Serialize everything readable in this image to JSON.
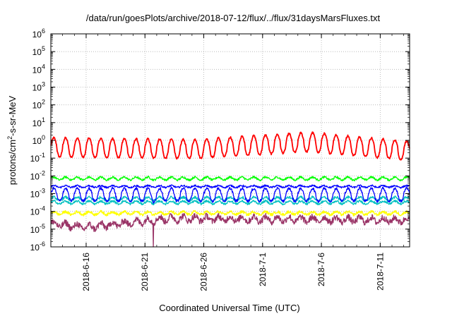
{
  "chart_data": {
    "type": "line",
    "title": "/data/run/goesPlots/archive/2018-07-12/flux/../flux/31daysMarsFluxes.txt",
    "xlabel": "Coordinated Universal Time (UTC)",
    "ylabel": {
      "prefix": "protons/cm",
      "superscript": "2",
      "suffix": "-s-sr-MeV"
    },
    "y_scale": "log",
    "ylim_exponent": [
      -6,
      6
    ],
    "y_tick_labels": [
      {
        "base": "10",
        "exp": "-6"
      },
      {
        "base": "10",
        "exp": "-5"
      },
      {
        "base": "10",
        "exp": "-4"
      },
      {
        "base": "10",
        "exp": "-3"
      },
      {
        "base": "10",
        "exp": "-2"
      },
      {
        "base": "10",
        "exp": "-1"
      },
      {
        "base": "10",
        "exp": "0"
      },
      {
        "base": "10",
        "exp": "1"
      },
      {
        "base": "10",
        "exp": "2"
      },
      {
        "base": "10",
        "exp": "3"
      },
      {
        "base": "10",
        "exp": "4"
      },
      {
        "base": "10",
        "exp": "5"
      },
      {
        "base": "10",
        "exp": "6"
      }
    ],
    "x_range_days": [
      0,
      30.5
    ],
    "x_ticks": [
      {
        "label": "2018-6-16",
        "day": 3
      },
      {
        "label": "2018-6-21",
        "day": 8
      },
      {
        "label": "2018-6-26",
        "day": 13
      },
      {
        "label": "2018-7-1",
        "day": 18
      },
      {
        "label": "2018-7-6",
        "day": 23
      },
      {
        "label": "2018-7-11",
        "day": 28
      }
    ],
    "grid": true,
    "series": [
      {
        "color": "#ff0000",
        "base_exp": -0.3,
        "trend": [
          [
            0,
            0
          ],
          [
            12,
            -0.1
          ],
          [
            22,
            0.3
          ],
          [
            30.5,
            -0.2
          ]
        ],
        "osc_amp": 0.45,
        "noise": 0.05,
        "period": 1.0,
        "dip_sharp": true
      },
      {
        "color": "#00ff00",
        "base_exp": -2.15,
        "trend": [
          [
            0,
            0
          ],
          [
            30.5,
            0
          ]
        ],
        "osc_amp": 0.08,
        "noise": 0.06,
        "period": 1.0
      },
      {
        "color": "#0000ff",
        "base_exp": -2.6,
        "trend": [
          [
            0,
            0
          ],
          [
            30.5,
            0
          ]
        ],
        "osc_amp": 0.05,
        "noise": 0.05,
        "period": 1.0
      },
      {
        "color": "#00c0c0",
        "base_exp": -3.3,
        "trend": [
          [
            0,
            0
          ],
          [
            30.5,
            0
          ]
        ],
        "osc_amp": 0.1,
        "noise": 0.07,
        "period": 1.0
      },
      {
        "color": "#0000ff",
        "base_exp": -3.0,
        "trend": [
          [
            0,
            0
          ],
          [
            30.5,
            0
          ]
        ],
        "osc_amp": 0.3,
        "noise": 0.08,
        "period": 1.0,
        "dip_sharp": true
      },
      {
        "color": "#00c0c0",
        "base_exp": -3.5,
        "trend": [
          [
            0,
            0
          ],
          [
            30.5,
            0
          ]
        ],
        "osc_amp": 0.08,
        "noise": 0.06,
        "period": 1.0
      },
      {
        "color": "#ffff00",
        "base_exp": -4.1,
        "trend": [
          [
            0,
            0
          ],
          [
            30.5,
            0
          ]
        ],
        "osc_amp": 0.08,
        "noise": 0.08,
        "period": 1.0
      },
      {
        "color": "#993366",
        "base_exp": -4.7,
        "trend": [
          [
            0,
            0
          ],
          [
            3,
            -0.2
          ],
          [
            10,
            0.3
          ],
          [
            30.5,
            0.2
          ]
        ],
        "osc_amp": 0.15,
        "noise": 0.18,
        "period": 1.0
      }
    ],
    "special_spikes": [
      {
        "series_index": 7,
        "day": 8.7,
        "to_exp": -6.0
      },
      {
        "series_index": 4,
        "day": 8.7,
        "to_exp": -3.6
      }
    ]
  }
}
